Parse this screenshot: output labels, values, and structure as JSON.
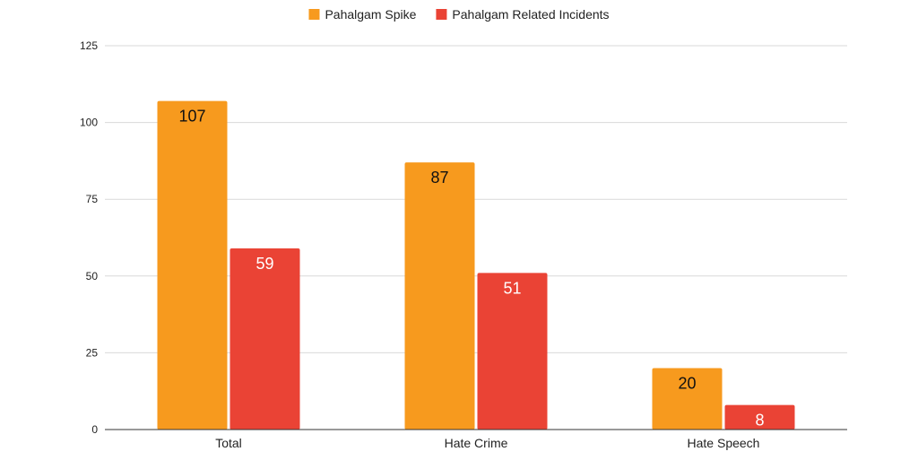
{
  "chart_data": {
    "type": "bar",
    "categories": [
      "Total",
      "Hate Crime",
      "Hate Speech"
    ],
    "series": [
      {
        "name": "Pahalgam Spike",
        "values": [
          107,
          87,
          20
        ],
        "color": "#F79A1E",
        "label_color": "#111111"
      },
      {
        "name": "Pahalgam Related Incidents",
        "values": [
          59,
          51,
          8
        ],
        "color": "#EA4335",
        "label_color": "#ffffff"
      }
    ],
    "ylim": [
      0,
      125
    ],
    "yticks": [
      0,
      25,
      50,
      75,
      100,
      125
    ],
    "grid": true,
    "legend_position": "top-center",
    "data_labels": true
  }
}
